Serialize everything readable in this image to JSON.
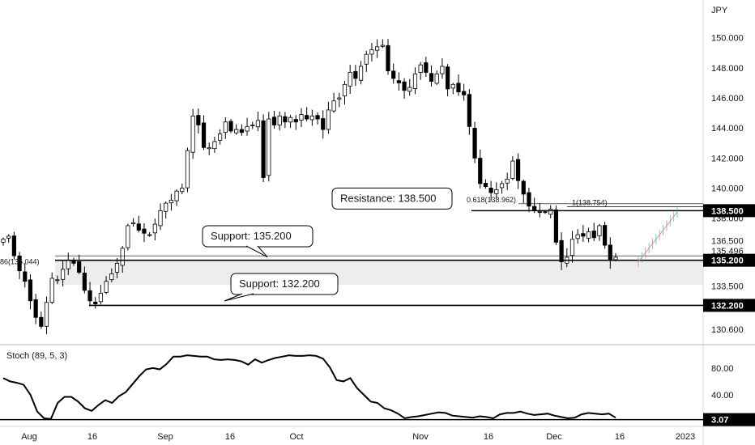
{
  "chart_data": [
    {
      "type": "candlestick",
      "currency_label": "JPY",
      "y_ticks": [
        "150.000",
        "148.000",
        "146.000",
        "144.000",
        "142.000",
        "140.000",
        "138.000",
        "136.500",
        "135.496",
        "133.500",
        "130.600"
      ],
      "y_tick_values": [
        150.0,
        148.0,
        146.0,
        144.0,
        142.0,
        140.0,
        138.0,
        136.5,
        135.496,
        133.5,
        130.6
      ],
      "x_ticks": [
        "Aug",
        "16",
        "Sep",
        "16",
        "Oct",
        "Nov",
        "16",
        "Dec",
        "16",
        "2023"
      ],
      "ylim": [
        129.8,
        152.3
      ],
      "price_tags": [
        {
          "label": "138.500",
          "value": 138.5
        },
        {
          "label": "135.200",
          "value": 135.2
        },
        {
          "label": "132.200",
          "value": 132.2
        }
      ],
      "current_price": {
        "label": "135.496",
        "value": 135.496
      },
      "support_zone": [
        133.6,
        135.25
      ],
      "fib_labels": [
        {
          "text": "0.618(138.962)",
          "value": 138.962
        },
        {
          "text": "1(138.754)",
          "value": 138.754
        },
        {
          "text": "86(135.044)",
          "value": 135.044
        }
      ],
      "callouts": [
        {
          "text": "Resistance: 138.500"
        },
        {
          "text": "Support: 135.200"
        },
        {
          "text": "Support: 132.200"
        }
      ],
      "close_series": [
        136.6,
        136.8,
        135.5,
        134.5,
        133.8,
        132.5,
        131.4,
        130.8,
        132.4,
        134.0,
        133.9,
        134.6,
        135.2,
        135.0,
        134.4,
        133.2,
        132.5,
        132.3,
        133.0,
        133.8,
        134.3,
        135.0,
        136.0,
        137.5,
        137.7,
        137.2,
        137.0,
        136.9,
        137.6,
        138.5,
        139.0,
        139.2,
        139.8,
        140.0,
        142.5,
        144.8,
        144.2,
        142.7,
        142.7,
        143.1,
        143.6,
        144.4,
        143.8,
        143.9,
        143.7,
        144.1,
        144.2,
        144.5,
        140.7,
        144.6,
        144.2,
        144.8,
        144.4,
        144.7,
        144.4,
        144.9,
        144.6,
        144.8,
        144.6,
        143.9,
        145.2,
        145.8,
        146.0,
        146.9,
        147.7,
        147.3,
        148.1,
        148.9,
        149.2,
        149.4,
        149.5,
        147.8,
        147.3,
        147.0,
        146.5,
        146.7,
        147.6,
        148.2,
        147.7,
        147.1,
        147.6,
        148.1,
        146.6,
        146.9,
        146.4,
        146.2,
        144.1,
        142.0,
        140.3,
        140.1,
        139.7,
        139.9,
        140.3,
        140.6,
        141.8,
        140.5,
        139.6,
        138.8,
        138.5,
        138.4,
        138.4,
        138.6,
        136.4,
        135.1,
        135.4,
        136.6,
        136.9,
        136.8,
        137.1,
        136.7,
        137.5,
        136.2,
        135.2,
        135.4
      ],
      "stochastic": {
        "label": "Stoch (89, 5, 3)",
        "current_label": "3.07",
        "current_value": 3.07,
        "y_ticks": [
          "80.00",
          "40.00"
        ],
        "y_tick_values": [
          80,
          40
        ],
        "ylim": [
          -1,
          110
        ],
        "values": [
          65,
          60,
          58,
          55,
          40,
          15,
          5,
          4,
          28,
          37,
          37,
          30,
          20,
          16,
          25,
          32,
          28,
          38,
          44,
          56,
          68,
          78,
          80,
          78,
          86,
          97,
          97,
          99,
          98,
          97,
          97,
          93,
          92,
          93,
          92,
          90,
          85,
          93,
          88,
          92,
          95,
          97,
          99,
          98,
          98,
          99,
          98,
          94,
          81,
          62,
          60,
          65,
          50,
          40,
          30,
          28,
          20,
          17,
          12,
          5,
          7,
          8,
          10,
          12,
          14,
          13,
          9,
          8,
          7,
          6,
          8,
          7,
          5,
          11,
          13,
          13,
          15,
          12,
          10,
          11,
          12,
          9,
          7,
          5,
          6,
          11,
          13,
          12,
          11,
          12,
          6
        ]
      }
    }
  ]
}
